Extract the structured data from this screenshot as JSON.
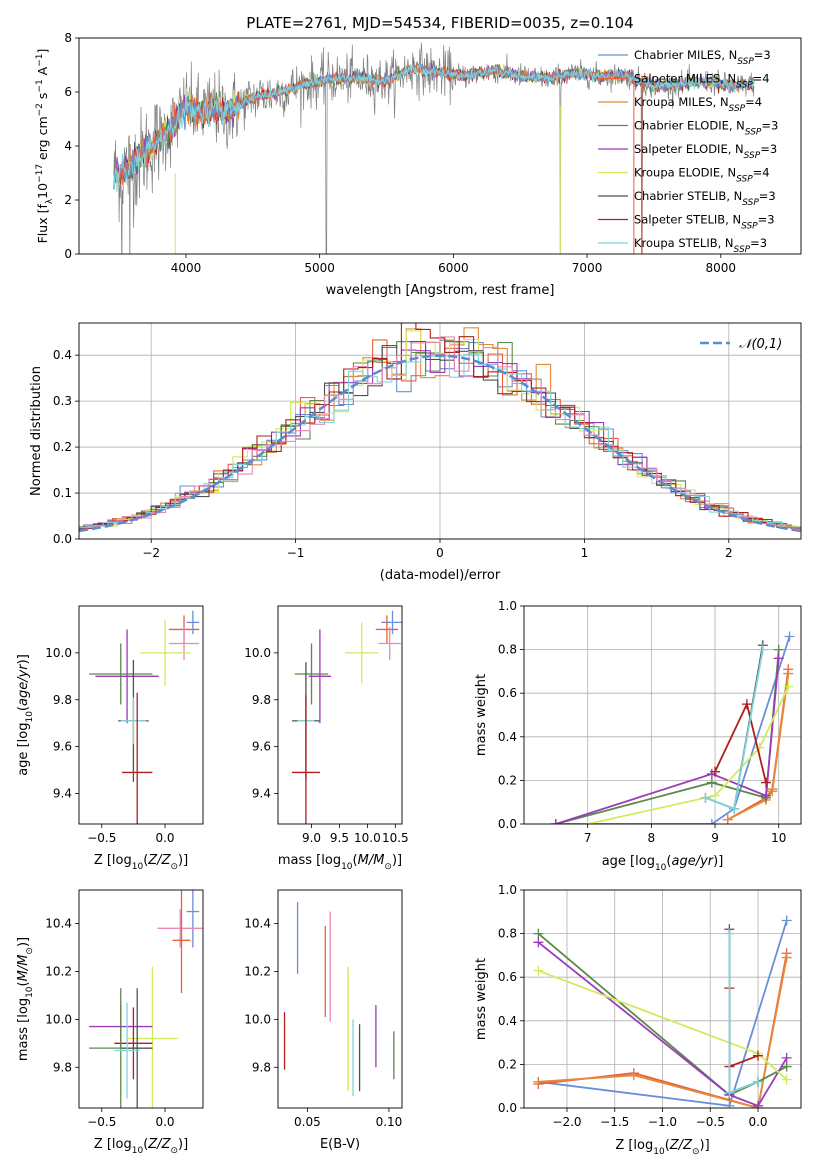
{
  "title": "PLATE=2761, MJD=54534, FIBERID=0035, z=0.104",
  "colors": {
    "chabrier_miles": "#6a8fd8",
    "salpeter_miles": "#e8603c",
    "kroupa_miles": "#e5893a",
    "chabrier_elodie": "#5a8a4a",
    "salpeter_elodie": "#9b3bb8",
    "kroupa_elodie": "#d2ea5e",
    "chabrier_stelib": "#505050",
    "salpeter_stelib": "#b01e1e",
    "kroupa_stelib": "#7fd6dc",
    "data": "#808080",
    "gaussian": "#5b8bd6",
    "pink": "#e88ab4"
  },
  "chart_data": [
    {
      "type": "line",
      "xlabel": "wavelength [Angstrom, rest frame]",
      "ylabel": "Flux [f_λ 10^-17 erg cm^-2 s^-1 A^-1]",
      "xlim": [
        3200,
        8600
      ],
      "ylim": [
        0,
        8
      ],
      "xticks": [
        "4000",
        "5000",
        "6000",
        "7000",
        "8000"
      ],
      "yticks": [
        "0",
        "2",
        "4",
        "6",
        "8"
      ],
      "legend_position": "upper-right",
      "legend": [
        "Chabrier MILES, N_SSP=3",
        "Salpeter MILES, N_SSP=4",
        "Kroupa MILES, N_SSP=4",
        "Chabrier ELODIE, N_SSP=3",
        "Salpeter ELODIE, N_SSP=3",
        "Kroupa ELODIE, N_SSP=4",
        "Chabrier STELIB, N_SSP=3",
        "Salpeter STELIB, N_SSP=3",
        "Kroupa STELIB, N_SSP=3"
      ],
      "continuum": {
        "x": [
          3450,
          3600,
          3700,
          3800,
          3900,
          4000,
          4100,
          4200,
          4300,
          4500,
          4700,
          4900,
          5100,
          5300,
          5500,
          5700,
          5900,
          6100,
          6300,
          6500,
          6700,
          6900,
          7100,
          7300,
          7500,
          7700,
          7900,
          8100,
          8200
        ],
        "y": [
          2.9,
          3.3,
          3.8,
          4.3,
          4.7,
          5.5,
          5.2,
          5.4,
          5.2,
          5.8,
          6.0,
          6.3,
          6.5,
          6.5,
          6.4,
          6.9,
          6.7,
          6.6,
          6.8,
          6.6,
          6.5,
          6.7,
          6.6,
          6.6,
          6.2,
          6.3,
          6.4,
          6.2,
          6.3
        ]
      }
    },
    {
      "type": "bar",
      "xlabel": "(data-model)/error",
      "ylabel": "Normed distribution",
      "xlim": [
        -2.5,
        2.5
      ],
      "ylim": [
        0,
        0.47
      ],
      "xticks": [
        "−2",
        "−1",
        "0",
        "1",
        "2"
      ],
      "yticks": [
        "0.0",
        "0.1",
        "0.2",
        "0.3",
        "0.4"
      ],
      "legend": [
        "𝒩(0,1)"
      ],
      "grid": true
    },
    {
      "type": "scatter",
      "xlabel": "Z [log10(Z/Z⊙)]",
      "ylabel": "age  [log10(age/yr)]",
      "xlim": [
        -0.68,
        0.3
      ],
      "ylim": [
        9.27,
        10.2
      ],
      "xticks": [
        "−0.5",
        "0.0"
      ],
      "yticks": [
        "9.4",
        "9.6",
        "9.8",
        "10.0"
      ],
      "points": [
        {
          "x": 0.22,
          "y": 10.13,
          "xe": 0.05,
          "ye": 0.05,
          "c": "chabrier_miles"
        },
        {
          "x": 0.15,
          "y": 10.1,
          "xe": 0.12,
          "ye": 0.06,
          "c": "salpeter_miles"
        },
        {
          "x": 0.15,
          "y": 10.04,
          "xe": 0.12,
          "ye": 0.07,
          "c": "pink"
        },
        {
          "x": 0.0,
          "y": 10.0,
          "xe": 0.2,
          "ye": 0.14,
          "c": "kroupa_elodie"
        },
        {
          "x": -0.35,
          "y": 9.91,
          "xe": 0.25,
          "ye": 0.13,
          "c": "chabrier_elodie"
        },
        {
          "x": -0.3,
          "y": 9.9,
          "xe": 0.25,
          "ye": 0.2,
          "c": "salpeter_elodie"
        },
        {
          "x": -0.25,
          "y": 9.71,
          "xe": 0.12,
          "ye": 0.26,
          "c": "chabrier_stelib"
        },
        {
          "x": -0.25,
          "y": 9.71,
          "xe": 0.1,
          "ye": 0.1,
          "c": "kroupa_stelib"
        },
        {
          "x": -0.22,
          "y": 9.49,
          "xe": 0.12,
          "ye": 0.34,
          "c": "salpeter_stelib"
        }
      ]
    },
    {
      "type": "scatter",
      "xlabel": "mass [log10(M/M⊙)]",
      "ylabel": "",
      "xlim": [
        8.4,
        10.62
      ],
      "ylim": [
        9.27,
        10.2
      ],
      "xticks": [
        "9.0",
        "9.5",
        "10.0",
        "10.5"
      ],
      "yticks": [
        "9.4",
        "9.6",
        "9.8",
        "10.0"
      ],
      "points": [
        {
          "x": 10.45,
          "y": 10.13,
          "xe": 0.2,
          "ye": 0.05,
          "c": "chabrier_miles"
        },
        {
          "x": 10.35,
          "y": 10.1,
          "xe": 0.2,
          "ye": 0.06,
          "c": "salpeter_miles"
        },
        {
          "x": 10.4,
          "y": 10.04,
          "xe": 0.2,
          "ye": 0.07,
          "c": "pink"
        },
        {
          "x": 9.9,
          "y": 10.0,
          "xe": 0.3,
          "ye": 0.13,
          "c": "kroupa_elodie"
        },
        {
          "x": 9.0,
          "y": 9.91,
          "xe": 0.3,
          "ye": 0.13,
          "c": "chabrier_elodie"
        },
        {
          "x": 9.15,
          "y": 9.9,
          "xe": 0.2,
          "ye": 0.2,
          "c": "salpeter_elodie"
        },
        {
          "x": 8.9,
          "y": 9.71,
          "xe": 0.25,
          "ye": 0.25,
          "c": "chabrier_stelib"
        },
        {
          "x": 8.9,
          "y": 9.71,
          "xe": 0.15,
          "ye": 0.1,
          "c": "kroupa_stelib"
        },
        {
          "x": 8.9,
          "y": 9.49,
          "xe": 0.25,
          "ye": 0.33,
          "c": "salpeter_stelib"
        }
      ]
    },
    {
      "type": "line",
      "xlabel": "age  [log10(age/yr)]",
      "ylabel": "mass weight",
      "xlim": [
        6.0,
        10.35
      ],
      "ylim": [
        0,
        1.0
      ],
      "xticks": [
        "7",
        "8",
        "9",
        "10"
      ],
      "yticks": [
        "0.0",
        "0.2",
        "0.4",
        "0.6",
        "0.8",
        "1.0"
      ],
      "grid": true,
      "series": [
        {
          "c": "chabrier_miles",
          "x": [
            6.5,
            8.95,
            9.3,
            10.17
          ],
          "y": [
            0.0,
            0.0,
            0.07,
            0.86
          ]
        },
        {
          "c": "salpeter_miles",
          "x": [
            9.2,
            9.8,
            9.9,
            10.15
          ],
          "y": [
            0.02,
            0.12,
            0.16,
            0.71
          ]
        },
        {
          "c": "kroupa_miles",
          "x": [
            9.2,
            9.8,
            9.9,
            10.15
          ],
          "y": [
            0.02,
            0.11,
            0.15,
            0.69
          ]
        },
        {
          "c": "chabrier_elodie",
          "x": [
            6.5,
            8.95,
            9.8,
            10.0
          ],
          "y": [
            0.0,
            0.19,
            0.12,
            0.8
          ]
        },
        {
          "c": "salpeter_elodie",
          "x": [
            6.5,
            8.95,
            9.8,
            10.0
          ],
          "y": [
            0.0,
            0.23,
            0.13,
            0.76
          ]
        },
        {
          "c": "kroupa_elodie",
          "x": [
            7.0,
            9.0,
            9.7,
            10.15
          ],
          "y": [
            0.0,
            0.13,
            0.35,
            0.63
          ]
        },
        {
          "c": "chabrier_stelib",
          "x": [
            8.85,
            9.3,
            9.75
          ],
          "y": [
            0.12,
            0.07,
            0.82
          ]
        },
        {
          "c": "salpeter_stelib",
          "x": [
            9.0,
            9.5,
            9.8
          ],
          "y": [
            0.24,
            0.55,
            0.19
          ]
        },
        {
          "c": "kroupa_stelib",
          "x": [
            8.85,
            9.3,
            9.75
          ],
          "y": [
            0.12,
            0.07,
            0.8
          ]
        }
      ]
    },
    {
      "type": "scatter",
      "xlabel": "Z [log10(Z/Z⊙)]",
      "ylabel": "mass [log10(M/M⊙)]",
      "xlim": [
        -0.68,
        0.3
      ],
      "ylim": [
        9.63,
        10.54
      ],
      "xticks": [
        "−0.5",
        "0.0"
      ],
      "yticks": [
        "9.8",
        "10.0",
        "10.2",
        "10.4"
      ],
      "points": [
        {
          "x": 0.22,
          "y": 10.45,
          "xe": 0.05,
          "ye": 0.15,
          "c": "chabrier_miles"
        },
        {
          "x": 0.12,
          "y": 10.38,
          "xe": 0.18,
          "ye": 0.08,
          "c": "pink"
        },
        {
          "x": 0.13,
          "y": 10.33,
          "xe": 0.07,
          "ye": 0.22,
          "c": "salpeter_miles"
        },
        {
          "x": -0.1,
          "y": 9.92,
          "xe": 0.2,
          "ye": 0.3,
          "c": "kroupa_elodie"
        },
        {
          "x": -0.35,
          "y": 9.97,
          "xe": 0.25,
          "ye": 0.09,
          "c": "salpeter_elodie"
        },
        {
          "x": -0.25,
          "y": 9.9,
          "xe": 0.15,
          "ye": 0.15,
          "c": "salpeter_stelib"
        },
        {
          "x": -0.35,
          "y": 9.88,
          "xe": 0.25,
          "ye": 0.25,
          "c": "chabrier_elodie"
        },
        {
          "x": -0.22,
          "y": 9.88,
          "xe": 0.12,
          "ye": 0.25,
          "c": "chabrier_stelib"
        },
        {
          "x": -0.3,
          "y": 9.87,
          "xe": 0.1,
          "ye": 0.2,
          "c": "kroupa_stelib"
        }
      ]
    },
    {
      "type": "scatter",
      "xlabel": "E(B-V)",
      "ylabel": "",
      "xlim": [
        0.032,
        0.108
      ],
      "ylim": [
        9.63,
        10.54
      ],
      "xticks": [
        "0.05",
        "0.10"
      ],
      "yticks": [
        "9.8",
        "10.0",
        "10.2",
        "10.4"
      ],
      "points": [
        {
          "x": 0.044,
          "y": 10.34,
          "xe": 0,
          "ye": 0.15,
          "c": "chabrier_miles"
        },
        {
          "x": 0.061,
          "y": 10.2,
          "xe": 0,
          "ye": 0.19,
          "c": "salpeter_miles"
        },
        {
          "x": 0.064,
          "y": 10.22,
          "xe": 0,
          "ye": 0.23,
          "c": "pink"
        },
        {
          "x": 0.075,
          "y": 9.96,
          "xe": 0,
          "ye": 0.26,
          "c": "kroupa_elodie"
        },
        {
          "x": 0.078,
          "y": 9.84,
          "xe": 0,
          "ye": 0.16,
          "c": "kroupa_stelib"
        },
        {
          "x": 0.082,
          "y": 9.84,
          "xe": 0,
          "ye": 0.14,
          "c": "chabrier_stelib"
        },
        {
          "x": 0.092,
          "y": 9.93,
          "xe": 0,
          "ye": 0.13,
          "c": "salpeter_elodie"
        },
        {
          "x": 0.036,
          "y": 9.91,
          "xe": 0,
          "ye": 0.12,
          "c": "salpeter_stelib"
        },
        {
          "x": 0.103,
          "y": 9.85,
          "xe": 0,
          "ye": 0.1,
          "c": "chabrier_elodie"
        }
      ]
    },
    {
      "type": "line",
      "xlabel": "Z [log10(Z/Z⊙)]",
      "ylabel": "mass weight",
      "xlim": [
        -2.45,
        0.45
      ],
      "ylim": [
        0,
        1.0
      ],
      "xticks": [
        "−2.0",
        "−1.5",
        "−1.0",
        "−0.5",
        "0.0"
      ],
      "yticks": [
        "0.0",
        "0.2",
        "0.4",
        "0.6",
        "0.8",
        "1.0"
      ],
      "grid": true,
      "series": [
        {
          "c": "chabrier_miles",
          "x": [
            -2.3,
            -0.3,
            0.3
          ],
          "y": [
            0.12,
            0.01,
            0.86
          ]
        },
        {
          "c": "salpeter_miles",
          "x": [
            -2.3,
            -1.3,
            0.0,
            0.3
          ],
          "y": [
            0.11,
            0.16,
            0.0,
            0.71
          ]
        },
        {
          "c": "kroupa_miles",
          "x": [
            -2.3,
            -1.3,
            0.0,
            0.3
          ],
          "y": [
            0.12,
            0.15,
            0.0,
            0.69
          ]
        },
        {
          "c": "chabrier_elodie",
          "x": [
            -2.3,
            -0.3,
            0.0,
            0.3
          ],
          "y": [
            0.8,
            0.06,
            0.12,
            0.19
          ]
        },
        {
          "c": "salpeter_elodie",
          "x": [
            -2.3,
            -0.3,
            0.0,
            0.3
          ],
          "y": [
            0.76,
            0.06,
            0.01,
            0.23
          ]
        },
        {
          "c": "kroupa_elodie",
          "x": [
            -2.3,
            0.0,
            0.3
          ],
          "y": [
            0.63,
            0.25,
            0.13
          ]
        },
        {
          "c": "chabrier_stelib",
          "x": [
            -0.3,
            -0.3,
            0.0
          ],
          "y": [
            0.82,
            0.07,
            0.12
          ]
        },
        {
          "c": "salpeter_stelib",
          "x": [
            -0.3,
            -0.3,
            0.0
          ],
          "y": [
            0.55,
            0.19,
            0.24
          ]
        },
        {
          "c": "kroupa_stelib",
          "x": [
            -0.3,
            -0.3,
            0.0
          ],
          "y": [
            0.8,
            0.07,
            0.12
          ]
        }
      ]
    }
  ]
}
